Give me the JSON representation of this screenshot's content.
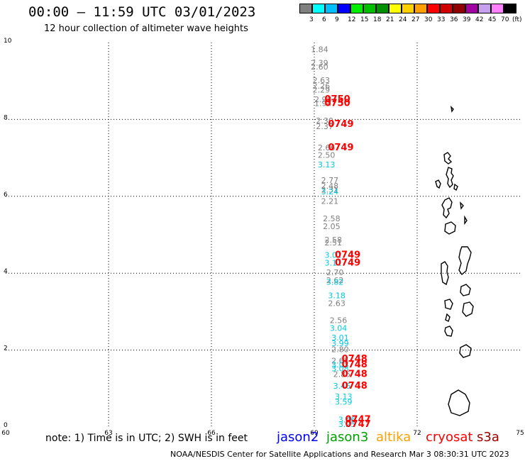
{
  "header": {
    "title": "00:00 – 11:59 UTC 03/01/2023",
    "subtitle": "12 hour collection of altimeter wave heights"
  },
  "colorbar": {
    "colors": [
      "#808080",
      "#00ffff",
      "#00bfff",
      "#0000ff",
      "#00ee00",
      "#00c000",
      "#009000",
      "#ffff00",
      "#ffd000",
      "#ffa000",
      "#ff0000",
      "#d00000",
      "#900000",
      "#a000a0",
      "#c8a0f0",
      "#ff80ff",
      "#000000"
    ],
    "labels": [
      "3",
      "6",
      "9",
      "12",
      "15",
      "18",
      "21",
      "24",
      "27",
      "30",
      "33",
      "36",
      "39",
      "42",
      "45",
      "70",
      "(ft)"
    ]
  },
  "footer": {
    "note": "note: 1) Time is in UTC; 2) SWH is in feet",
    "satellites": [
      {
        "name": "jason2",
        "color": "#0000ff"
      },
      {
        "name": "jason3",
        "color": "#00a000"
      },
      {
        "name": "altika",
        "color": "#ffa000"
      },
      {
        "name": "cryosat",
        "color": "#ff0000"
      },
      {
        "name": "s3a",
        "color": "#a00000"
      }
    ],
    "credit": "NOAA/NESDIS Center for Satellite Applications and Research   Mar  3 08:30:31 UTC 2023"
  },
  "chart_data": {
    "type": "scatter",
    "title": "00:00 – 11:59 UTC 03/01/2023",
    "subtitle": "12 hour collection of altimeter wave heights",
    "xlabel": "",
    "ylabel": "",
    "xlim": [
      60,
      75
    ],
    "ylim": [
      0,
      10
    ],
    "xticks": [
      60,
      63,
      66,
      69,
      72,
      75
    ],
    "yticks": [
      0,
      2,
      4,
      6,
      8,
      10
    ],
    "grid": true,
    "series": [
      {
        "color": "#808080",
        "points": [
          {
            "x": 68.9,
            "y": 9.75,
            "label": "1.84"
          },
          {
            "x": 68.9,
            "y": 9.4,
            "label": "2.39"
          },
          {
            "x": 68.9,
            "y": 9.3,
            "label": "2.60"
          },
          {
            "x": 68.95,
            "y": 8.95,
            "label": "2.63"
          },
          {
            "x": 68.95,
            "y": 8.8,
            "label": "2.26"
          },
          {
            "x": 68.95,
            "y": 8.7,
            "label": "2.29"
          },
          {
            "x": 69.0,
            "y": 8.45,
            "label": "2.98"
          },
          {
            "x": 69.0,
            "y": 8.35,
            "label": "1.94"
          },
          {
            "x": 69.05,
            "y": 7.9,
            "label": "2.30"
          },
          {
            "x": 69.05,
            "y": 7.75,
            "label": "2.37"
          },
          {
            "x": 69.1,
            "y": 7.2,
            "label": "2.66"
          },
          {
            "x": 69.1,
            "y": 7.0,
            "label": "2.50"
          },
          {
            "x": 69.2,
            "y": 6.35,
            "label": "2.77"
          },
          {
            "x": 69.2,
            "y": 6.2,
            "label": "2.48"
          },
          {
            "x": 69.2,
            "y": 6.1,
            "label": "2.31"
          },
          {
            "x": 69.2,
            "y": 5.8,
            "label": "2.21"
          },
          {
            "x": 69.25,
            "y": 5.35,
            "label": "2.58"
          },
          {
            "x": 69.25,
            "y": 5.15,
            "label": "2.05"
          },
          {
            "x": 69.3,
            "y": 4.8,
            "label": "2.58"
          },
          {
            "x": 69.3,
            "y": 4.72,
            "label": "2.51"
          },
          {
            "x": 69.35,
            "y": 3.95,
            "label": "2.70"
          },
          {
            "x": 69.35,
            "y": 3.75,
            "label": "2.62"
          },
          {
            "x": 69.4,
            "y": 3.15,
            "label": "2.63"
          },
          {
            "x": 69.45,
            "y": 2.7,
            "label": "2.56"
          },
          {
            "x": 69.5,
            "y": 1.95,
            "label": "2.80"
          },
          {
            "x": 69.5,
            "y": 1.65,
            "label": "2.65"
          },
          {
            "x": 69.55,
            "y": 1.3,
            "label": "2.85"
          }
        ]
      },
      {
        "color": "#00c8e0",
        "points": [
          {
            "x": 69.1,
            "y": 6.75,
            "label": "3.13"
          },
          {
            "x": 69.2,
            "y": 6.05,
            "label": "3.24"
          },
          {
            "x": 69.3,
            "y": 4.4,
            "label": "3.02"
          },
          {
            "x": 69.3,
            "y": 4.2,
            "label": "3.11"
          },
          {
            "x": 69.35,
            "y": 3.7,
            "label": "3.82"
          },
          {
            "x": 69.4,
            "y": 3.35,
            "label": "3.18"
          },
          {
            "x": 69.45,
            "y": 2.5,
            "label": "3.04"
          },
          {
            "x": 69.5,
            "y": 2.25,
            "label": "3.01"
          },
          {
            "x": 69.5,
            "y": 2.1,
            "label": "3.99"
          },
          {
            "x": 69.5,
            "y": 1.55,
            "label": "3.03"
          },
          {
            "x": 69.5,
            "y": 1.45,
            "label": "3.08"
          },
          {
            "x": 69.55,
            "y": 1.0,
            "label": "3.46"
          },
          {
            "x": 69.6,
            "y": 0.72,
            "label": "3.13"
          },
          {
            "x": 69.6,
            "y": 0.58,
            "label": "3.59"
          },
          {
            "x": 69.7,
            "y": 0.12,
            "label": "3.46"
          },
          {
            "x": 69.7,
            "y": 0.0,
            "label": "3.25"
          }
        ]
      },
      {
        "name": "cryosat",
        "color": "#ff0000",
        "points": [
          {
            "x": 69.3,
            "y": 8.45,
            "label": "0750"
          },
          {
            "x": 69.3,
            "y": 8.35,
            "label": "0750"
          },
          {
            "x": 69.4,
            "y": 7.8,
            "label": "0749"
          },
          {
            "x": 69.4,
            "y": 7.2,
            "label": "0749"
          },
          {
            "x": 69.6,
            "y": 4.4,
            "label": "0749"
          },
          {
            "x": 69.6,
            "y": 4.2,
            "label": "0749"
          },
          {
            "x": 69.8,
            "y": 1.7,
            "label": "0748"
          },
          {
            "x": 69.8,
            "y": 1.55,
            "label": "0748"
          },
          {
            "x": 69.8,
            "y": 1.3,
            "label": "0748"
          },
          {
            "x": 69.8,
            "y": 1.0,
            "label": "0748"
          },
          {
            "x": 69.9,
            "y": 0.12,
            "label": "0747"
          },
          {
            "x": 69.9,
            "y": 0.0,
            "label": "0747"
          }
        ]
      }
    ]
  }
}
